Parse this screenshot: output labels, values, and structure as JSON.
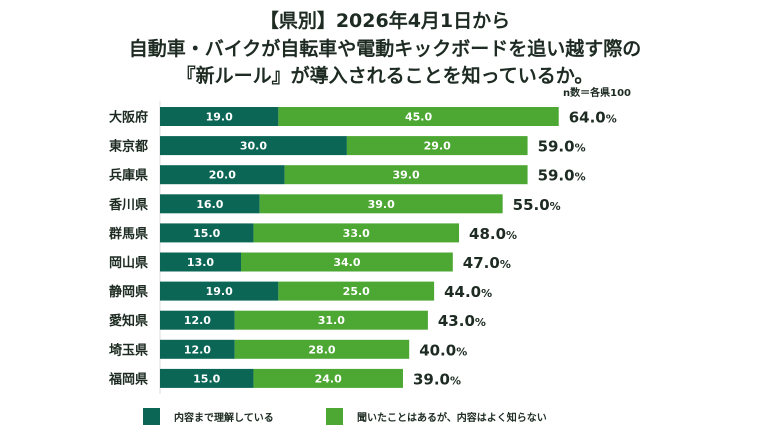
{
  "chart_data": {
    "type": "bar",
    "orientation": "horizontal",
    "stacked": true,
    "title_lines": [
      "【県別】2026年4月1日から",
      "自動車・バイクが自転車や電動キックボードを追い越す際の",
      "『新ルール』が導入されることを知っているか。"
    ],
    "note": "n数＝各県100",
    "categories": [
      "大阪府",
      "東京都",
      "兵庫県",
      "香川県",
      "群馬県",
      "岡山県",
      "静岡県",
      "愛知県",
      "埼玉県",
      "福岡県"
    ],
    "series": [
      {
        "name": "内容まで理解している",
        "color": "#0b6656",
        "values": [
          19.0,
          30.0,
          20.0,
          16.0,
          15.0,
          13.0,
          19.0,
          12.0,
          12.0,
          15.0
        ]
      },
      {
        "name": "聞いたことはあるが、内容はよく知らない",
        "color": "#4ca733",
        "values": [
          45.0,
          29.0,
          39.0,
          39.0,
          33.0,
          34.0,
          25.0,
          31.0,
          28.0,
          24.0
        ]
      }
    ],
    "totals": [
      64.0,
      59.0,
      59.0,
      55.0,
      48.0,
      47.0,
      44.0,
      43.0,
      40.0,
      39.0
    ],
    "total_suffix": "%",
    "xlim": [
      0,
      100
    ],
    "grid": false,
    "legend_position": "bottom",
    "xlabel": "",
    "ylabel": ""
  }
}
